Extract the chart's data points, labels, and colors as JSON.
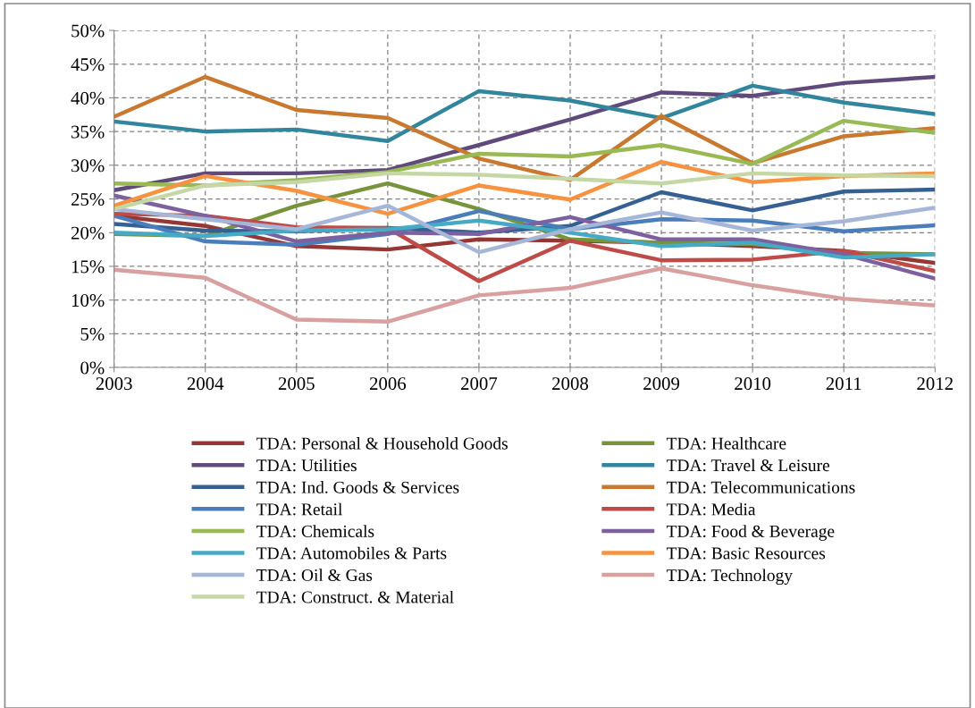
{
  "chart_data": {
    "type": "line",
    "x": [
      2003,
      2004,
      2005,
      2006,
      2007,
      2008,
      2009,
      2010,
      2011,
      2012
    ],
    "xlim": [
      2003,
      2012
    ],
    "xticks": [
      2003,
      2004,
      2005,
      2006,
      2007,
      2008,
      2009,
      2010,
      2011,
      2012
    ],
    "ylim": [
      0,
      50
    ],
    "yticks": [
      {
        "value": 0,
        "label": "0%"
      },
      {
        "value": 5,
        "label": "5%"
      },
      {
        "value": 10,
        "label": "10%"
      },
      {
        "value": 15,
        "label": "15%"
      },
      {
        "value": 20,
        "label": "20%"
      },
      {
        "value": 25,
        "label": "25%"
      },
      {
        "value": 30,
        "label": "30%"
      },
      {
        "value": 35,
        "label": "35%"
      },
      {
        "value": 40,
        "label": "40%"
      },
      {
        "value": 45,
        "label": "45%"
      },
      {
        "value": 50,
        "label": "50%"
      }
    ],
    "grid": true,
    "legend": "bottom",
    "marker": "none",
    "line_style": "solid",
    "series": [
      {
        "name": "TDA: Personal & Household Goods",
        "color": "#953735",
        "values": [
          22.5,
          21,
          18,
          17.5,
          19,
          18.8,
          18.5,
          18,
          17.3,
          15.5
        ]
      },
      {
        "name": "TDA: Healthcare",
        "color": "#77933c",
        "values": [
          19.8,
          19.5,
          24,
          27.3,
          23.5,
          19,
          18.5,
          18.3,
          17,
          16.8
        ]
      },
      {
        "name": "TDA: Utilities",
        "color": "#604a7b",
        "values": [
          26.3,
          28.8,
          28.8,
          29.3,
          33,
          36.8,
          40.8,
          40.3,
          42.2,
          43.1
        ]
      },
      {
        "name": "TDA: Travel & Leisure",
        "color": "#31859c",
        "values": [
          36.5,
          35,
          35.3,
          33.6,
          41,
          39.6,
          37,
          41.8,
          39.3,
          37.6
        ]
      },
      {
        "name": "TDA: Ind. Goods & Services",
        "color": "#376092",
        "values": [
          21.3,
          20.3,
          20.2,
          20.7,
          20,
          21,
          26,
          23.3,
          26.1,
          26.4
        ]
      },
      {
        "name": "TDA: Telecommunications",
        "color": "#c8782f",
        "values": [
          37.2,
          43.1,
          38.2,
          37,
          31,
          27.8,
          37.3,
          30.3,
          34.3,
          35.5
        ]
      },
      {
        "name": "TDA: Retail",
        "color": "#4a7ebb",
        "values": [
          22.5,
          18.7,
          18.2,
          19.8,
          23.2,
          20.5,
          22,
          21.8,
          20.2,
          21.1
        ]
      },
      {
        "name": "TDA: Media",
        "color": "#be4b48",
        "values": [
          22.8,
          22.5,
          20.8,
          20.7,
          12.8,
          18.8,
          15.9,
          16,
          17.3,
          14.3
        ]
      },
      {
        "name": "TDA: Chemicals",
        "color": "#98b954",
        "values": [
          27.3,
          27,
          27.8,
          29,
          31.7,
          31.3,
          33,
          30.2,
          36.6,
          34.8
        ]
      },
      {
        "name": "TDA: Food & Beverage",
        "color": "#7d60a0",
        "values": [
          25.5,
          22.5,
          18.7,
          20,
          19.8,
          22.3,
          19,
          19,
          16.8,
          13.2
        ]
      },
      {
        "name": "TDA: Automobiles & Parts",
        "color": "#46aac5",
        "values": [
          20,
          19.5,
          20.3,
          20.5,
          21.8,
          20,
          18,
          18.5,
          16.3,
          16.8
        ]
      },
      {
        "name": "TDA: Basic Resources",
        "color": "#f69240",
        "values": [
          24,
          28.4,
          26.2,
          22.8,
          27,
          24.9,
          30.5,
          27.5,
          28.4,
          28.8
        ]
      },
      {
        "name": "TDA: Oil & Gas",
        "color": "#a5b6d8",
        "values": [
          23.5,
          22,
          20.5,
          24,
          17.1,
          20.5,
          23,
          20.3,
          21.7,
          23.7
        ]
      },
      {
        "name": "TDA: Technology",
        "color": "#d8a1a0",
        "values": [
          14.5,
          13.3,
          7.1,
          6.8,
          10.7,
          11.8,
          14.7,
          12.2,
          10.2,
          9.2
        ]
      },
      {
        "name": "TDA: Construct. & Material",
        "color": "#c4d7a5",
        "values": [
          23.5,
          27,
          27.5,
          28.8,
          28.6,
          28,
          27.3,
          28.8,
          28.5,
          28.4
        ]
      }
    ]
  }
}
